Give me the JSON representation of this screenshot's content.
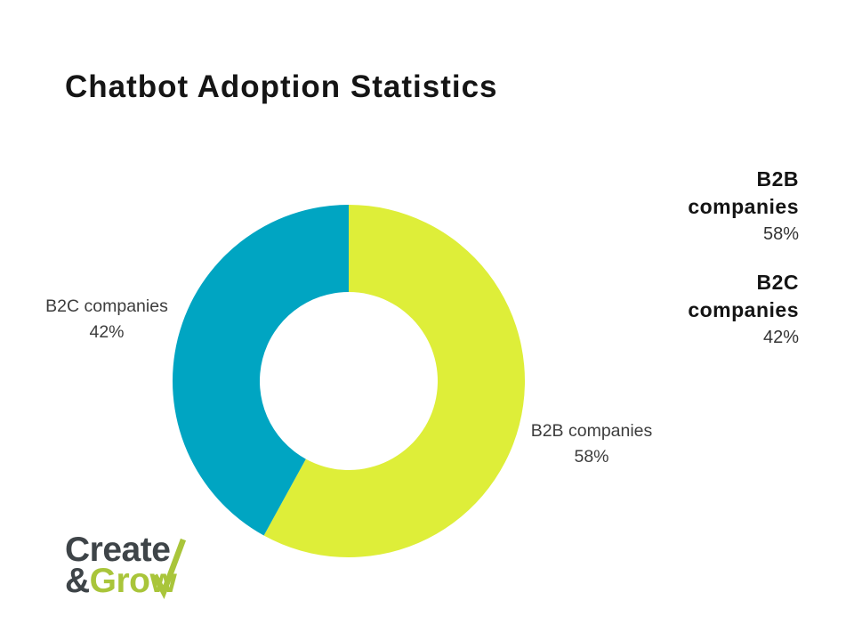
{
  "title": "Chatbot Adoption Statistics",
  "chart_data": {
    "type": "pie",
    "subtype": "donut",
    "categories": [
      "B2B companies",
      "B2C companies"
    ],
    "values": [
      58,
      42
    ],
    "unit": "%",
    "colors": [
      "#deee39",
      "#00a5c2"
    ],
    "start_angle_deg": 0,
    "direction": "clockwise",
    "hole_ratio": 0.505,
    "slice_labels": [
      {
        "label": "B2B companies",
        "value_text": "58%"
      },
      {
        "label": "B2C companies",
        "value_text": "42%"
      }
    ]
  },
  "legend": {
    "position": "right",
    "entries": [
      {
        "label": "B2B companies",
        "value": "58%"
      },
      {
        "label": "B2C companies",
        "value": "42%"
      }
    ]
  },
  "logo": {
    "word1": "Create",
    "ampersand": "&",
    "word2": "Grow",
    "text_color": "#3e4448",
    "accent_color": "#a9c53a"
  }
}
